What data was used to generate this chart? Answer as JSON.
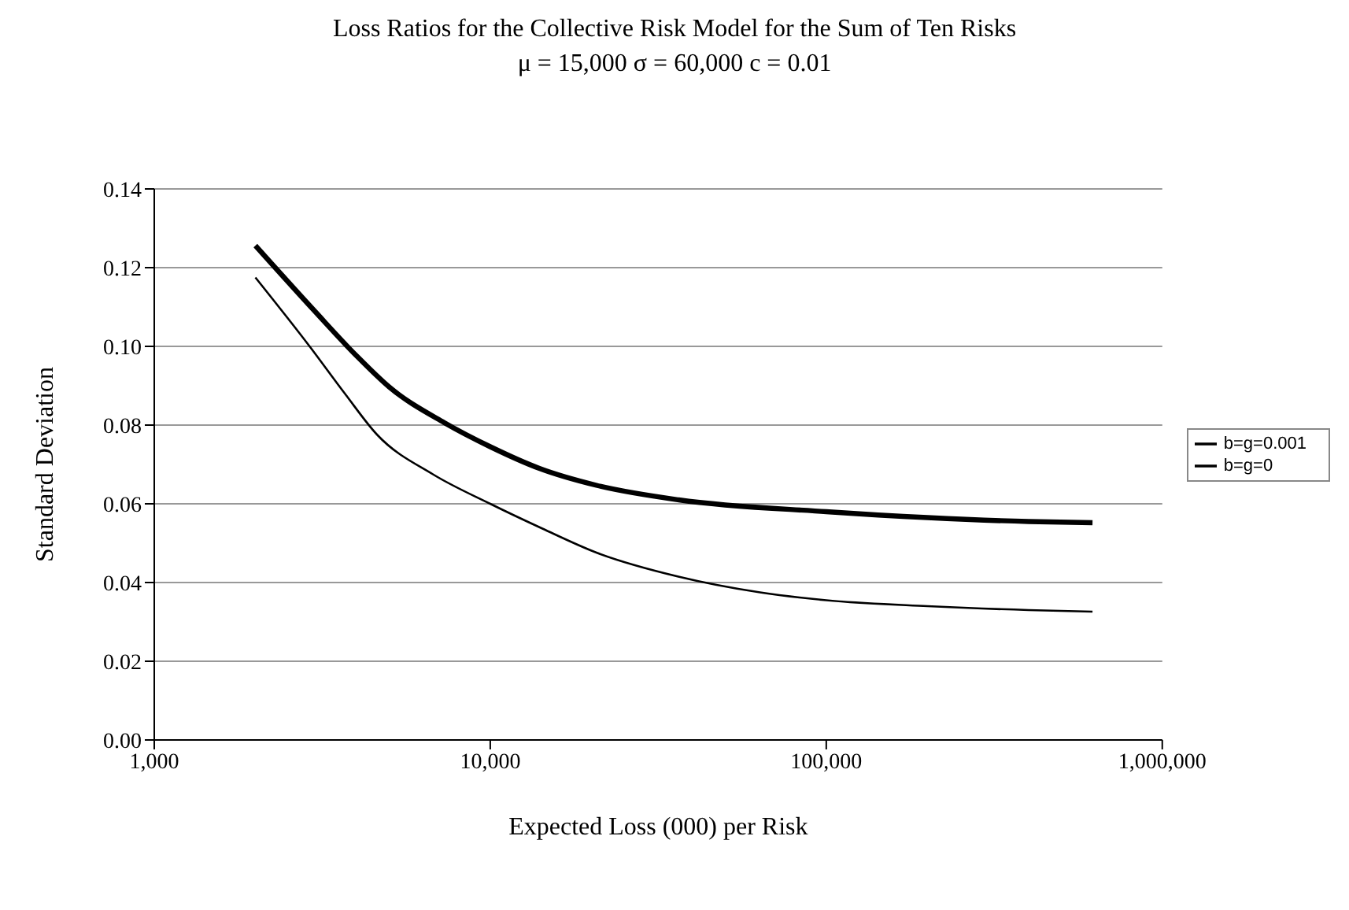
{
  "chart_data": {
    "type": "line",
    "title": "Loss Ratios for the Collective Risk Model for the Sum of Ten Risks",
    "subtitle": "μ = 15,000  σ = 60,000  c = 0.01",
    "xlabel": "Expected Loss (000) per Risk",
    "ylabel": "Standard Deviation",
    "log": "x",
    "xlim": [
      1000,
      1000000
    ],
    "xticks": [
      {
        "value": 1000,
        "label": "1,000"
      },
      {
        "value": 10000,
        "label": "10,000"
      },
      {
        "value": 100000,
        "label": "100,000"
      },
      {
        "value": 1000000,
        "label": "1,000,000"
      }
    ],
    "ylim": [
      0,
      0.14
    ],
    "yticks": [
      {
        "value": 0,
        "label": "0.00"
      },
      {
        "value": 0.02,
        "label": "0.02"
      },
      {
        "value": 0.04,
        "label": "0.04"
      },
      {
        "value": 0.06,
        "label": "0.06"
      },
      {
        "value": 0.08,
        "label": "0.08"
      },
      {
        "value": 0.1,
        "label": "0.10"
      },
      {
        "value": 0.12,
        "label": "0.12"
      },
      {
        "value": 0.14,
        "label": "0.14"
      }
    ],
    "grid": "y",
    "legend": "right",
    "marker": "none",
    "line_style": "solid",
    "series": [
      {
        "name": "b=g=0.001",
        "color": "#000000",
        "x": [
          2000,
          3000,
          4000,
          5000,
          7300,
          10000,
          14000,
          20700,
          36400,
          100000,
          200000,
          400000,
          620000
        ],
        "values": [
          0.1256,
          0.109,
          0.0976,
          0.0897,
          0.0806,
          0.0745,
          0.069,
          0.0647,
          0.061,
          0.058,
          0.0565,
          0.0555,
          0.0552
        ]
      },
      {
        "name": "b=g=0",
        "color": "#000000",
        "x": [
          2000,
          2900,
          3700,
          4600,
          6750,
          10000,
          14300,
          20700,
          36300,
          63500,
          100000,
          200000,
          400000,
          620000
        ],
        "values": [
          0.1175,
          0.1,
          0.0879,
          0.0776,
          0.0675,
          0.06,
          0.0537,
          0.0476,
          0.0415,
          0.0375,
          0.0355,
          0.034,
          0.033,
          0.0326
        ]
      }
    ]
  }
}
